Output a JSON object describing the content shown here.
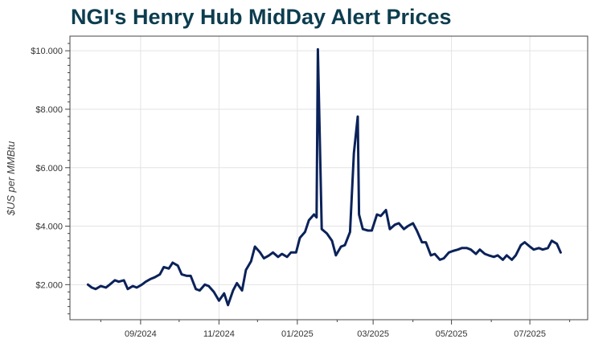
{
  "chart_data": {
    "type": "line",
    "title": "NGI's Henry Hub MidDay Alert Prices",
    "ylabel": "$US per MMBtu",
    "xlabel": "",
    "ylim": [
      0.8,
      10.5
    ],
    "xlim": [
      "2024-07-08",
      "2025-08-15"
    ],
    "grid": true,
    "legend": "none",
    "line_color": "#0b2259",
    "y_ticks": [
      {
        "value": 2,
        "label": "$2.000"
      },
      {
        "value": 4,
        "label": "$4.000"
      },
      {
        "value": 6,
        "label": "$6.000"
      },
      {
        "value": 8,
        "label": "$8.000"
      },
      {
        "value": 10,
        "label": "$10.000"
      }
    ],
    "x_ticks": [
      {
        "date": "2024-09-01",
        "label": "09/2024"
      },
      {
        "date": "2024-11-01",
        "label": "11/2024"
      },
      {
        "date": "2025-01-01",
        "label": "01/2025"
      },
      {
        "date": "2025-03-01",
        "label": "03/2025"
      },
      {
        "date": "2025-05-01",
        "label": "05/2025"
      },
      {
        "date": "2025-07-01",
        "label": "07/2025"
      }
    ],
    "series": [
      {
        "x": [
          "2024-07-22",
          "2024-07-25",
          "2024-07-28",
          "2024-08-01",
          "2024-08-05",
          "2024-08-08",
          "2024-08-12",
          "2024-08-15",
          "2024-08-19",
          "2024-08-22",
          "2024-08-26",
          "2024-08-29",
          "2024-09-02",
          "2024-09-05",
          "2024-09-09",
          "2024-09-12",
          "2024-09-16",
          "2024-09-19",
          "2024-09-23",
          "2024-09-26",
          "2024-09-30",
          "2024-10-03",
          "2024-10-07",
          "2024-10-10",
          "2024-10-14",
          "2024-10-17",
          "2024-10-21",
          "2024-10-24",
          "2024-10-28",
          "2024-11-01",
          "2024-11-05",
          "2024-11-08",
          "2024-11-12",
          "2024-11-15",
          "2024-11-19",
          "2024-11-22",
          "2024-11-26",
          "2024-11-29",
          "2024-12-03",
          "2024-12-06",
          "2024-12-10",
          "2024-12-13",
          "2024-12-17",
          "2024-12-20",
          "2024-12-24",
          "2024-12-27",
          "2024-12-31",
          "2025-01-03",
          "2025-01-07",
          "2025-01-10",
          "2025-01-14",
          "2025-01-16",
          "2025-01-17",
          "2025-01-20",
          "2025-01-24",
          "2025-01-28",
          "2025-01-31",
          "2025-02-04",
          "2025-02-07",
          "2025-02-11",
          "2025-02-14",
          "2025-02-17",
          "2025-02-18",
          "2025-02-21",
          "2025-02-25",
          "2025-02-28",
          "2025-03-04",
          "2025-03-07",
          "2025-03-11",
          "2025-03-14",
          "2025-03-18",
          "2025-03-21",
          "2025-03-25",
          "2025-03-28",
          "2025-04-01",
          "2025-04-04",
          "2025-04-08",
          "2025-04-11",
          "2025-04-15",
          "2025-04-18",
          "2025-04-22",
          "2025-04-25",
          "2025-04-29",
          "2025-05-02",
          "2025-05-06",
          "2025-05-09",
          "2025-05-13",
          "2025-05-16",
          "2025-05-20",
          "2025-05-23",
          "2025-05-27",
          "2025-05-30",
          "2025-06-03",
          "2025-06-06",
          "2025-06-10",
          "2025-06-13",
          "2025-06-17",
          "2025-06-20",
          "2025-06-24",
          "2025-06-27",
          "2025-07-01",
          "2025-07-04",
          "2025-07-08",
          "2025-07-11",
          "2025-07-15",
          "2025-07-18",
          "2025-07-22",
          "2025-07-25"
        ],
        "y": [
          2.0,
          1.9,
          1.85,
          1.95,
          1.9,
          2.0,
          2.15,
          2.1,
          2.15,
          1.85,
          1.95,
          1.9,
          2.0,
          2.1,
          2.2,
          2.25,
          2.35,
          2.6,
          2.55,
          2.75,
          2.65,
          2.35,
          2.3,
          2.3,
          1.85,
          1.8,
          2.0,
          1.95,
          1.75,
          1.45,
          1.7,
          1.3,
          1.8,
          2.05,
          1.8,
          2.5,
          2.8,
          3.3,
          3.1,
          2.9,
          3.0,
          3.1,
          2.95,
          3.05,
          2.95,
          3.1,
          3.1,
          3.6,
          3.8,
          4.2,
          4.4,
          4.3,
          10.05,
          3.9,
          3.75,
          3.5,
          3.0,
          3.3,
          3.35,
          3.8,
          6.5,
          7.75,
          4.4,
          3.9,
          3.85,
          3.85,
          4.4,
          4.35,
          4.55,
          3.9,
          4.05,
          4.1,
          3.9,
          4.0,
          4.1,
          3.85,
          3.45,
          3.45,
          3.0,
          3.05,
          2.85,
          2.9,
          3.1,
          3.15,
          3.2,
          3.25,
          3.25,
          3.2,
          3.05,
          3.2,
          3.05,
          3.0,
          2.95,
          3.0,
          2.85,
          3.0,
          2.85,
          3.0,
          3.35,
          3.45,
          3.3,
          3.2,
          3.25,
          3.2,
          3.25,
          3.5,
          3.4,
          3.1
        ]
      }
    ]
  }
}
